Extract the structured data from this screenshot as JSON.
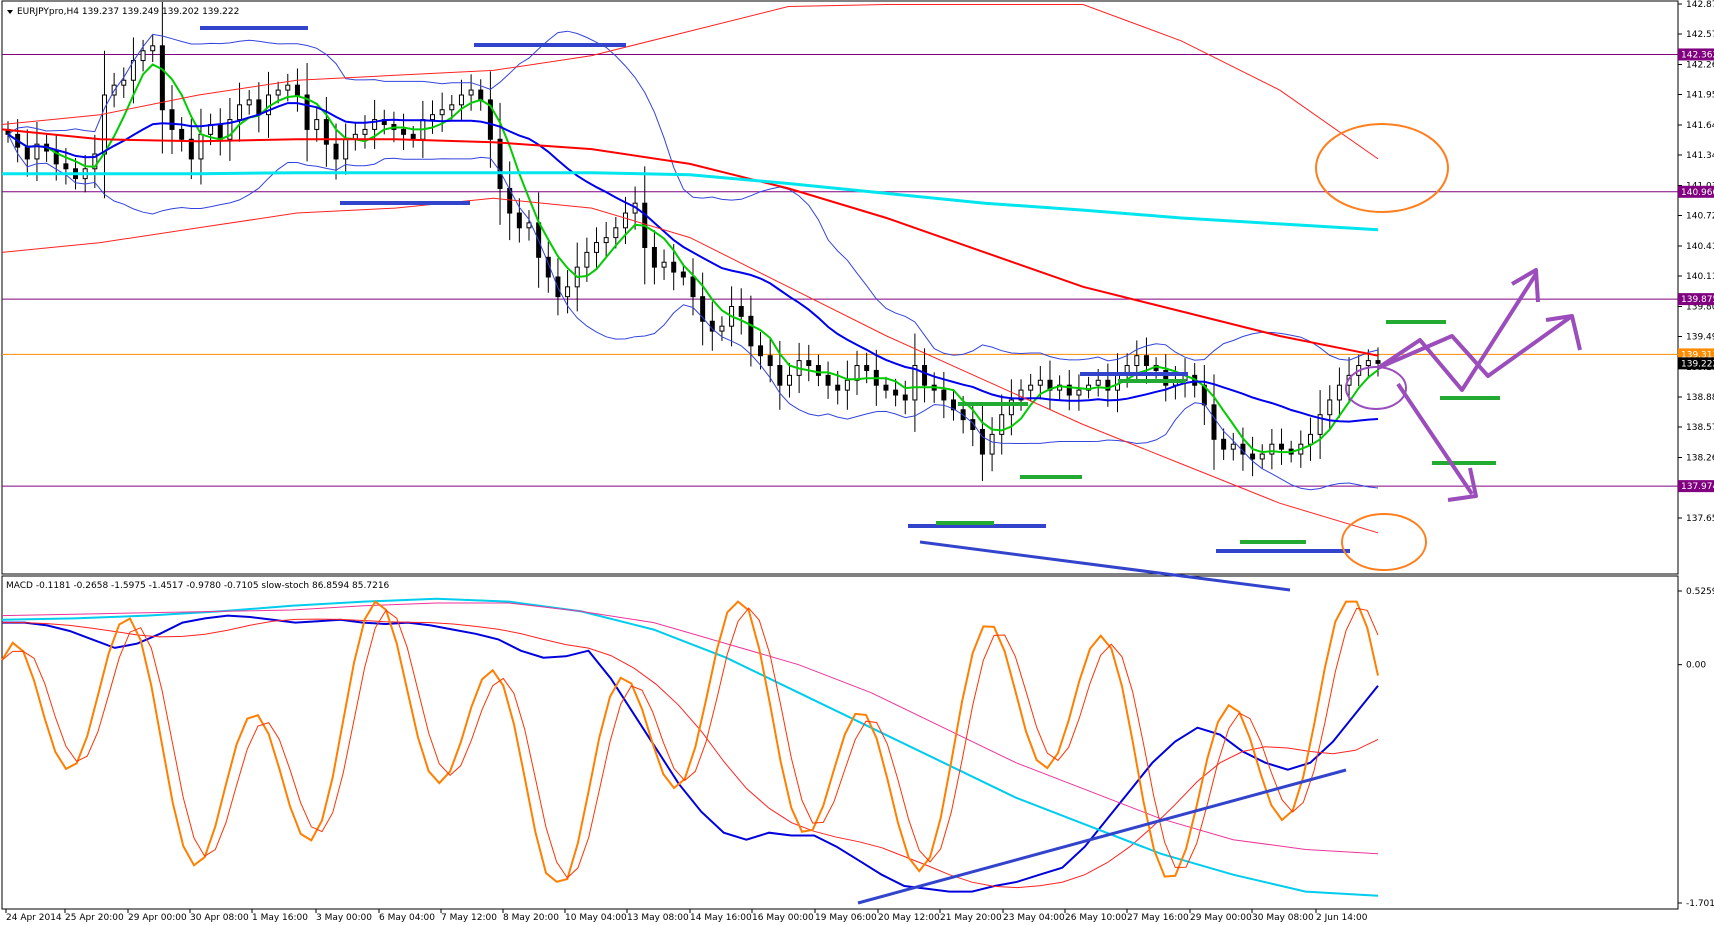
{
  "chart_data": [
    {
      "type": "candlestick",
      "title": "EURJPYpro,H4  139.237 139.249 139.202 139.222",
      "ylim": [
        137.65,
        142.875
      ],
      "y_ticks": [
        "142.875",
        "142.570",
        "142.260",
        "141.955",
        "141.645",
        "141.340",
        "141.030",
        "140.725",
        "140.415",
        "140.110",
        "139.800",
        "139.495",
        "139.185",
        "138.880",
        "138.575",
        "138.265",
        "137.960",
        "137.650"
      ],
      "x_ticks": [
        "24 Apr 2014",
        "25 Apr 20:00",
        "29 Apr 00:00",
        "30 Apr 08:00",
        "1 May 16:00",
        "3 May 00:00",
        "6 May 04:00",
        "7 May 12:00",
        "8 May 20:00",
        "10 May 04:00",
        "13 May 08:00",
        "14 May 16:00",
        "16 May 00:00",
        "19 May 06:00",
        "20 May 12:00",
        "21 May 20:00",
        "23 May 04:00",
        "26 May 10:00",
        "27 May 16:00",
        "29 May 00:00",
        "30 May 08:00",
        "2 Jun 14:00"
      ],
      "levels": [
        {
          "value": "142.362",
          "color": "#800080"
        },
        {
          "value": "140.966",
          "color": "#800080"
        },
        {
          "value": "139.875",
          "color": "#800080"
        },
        {
          "value": "139.313",
          "color": "#ff8c00"
        },
        {
          "value": "137.974",
          "color": "#800080"
        }
      ],
      "last_price": "139.222",
      "closes": [
        141.55,
        141.42,
        141.3,
        141.45,
        141.38,
        141.25,
        141.2,
        141.1,
        141.2,
        141.35,
        141.95,
        142.05,
        142.1,
        142.3,
        142.4,
        142.45,
        141.8,
        141.6,
        141.5,
        141.3,
        141.55,
        141.65,
        141.5,
        141.7,
        141.85,
        141.9,
        141.75,
        141.95,
        142.0,
        142.05,
        141.95,
        141.6,
        141.7,
        141.45,
        141.3,
        141.5,
        141.55,
        141.6,
        141.7,
        141.65,
        141.6,
        141.55,
        141.5,
        141.7,
        141.75,
        141.8,
        141.85,
        141.95,
        142.0,
        141.9,
        141.5,
        141.0,
        140.75,
        140.6,
        140.65,
        140.3,
        140.1,
        139.9,
        140.0,
        140.2,
        140.35,
        140.45,
        140.5,
        140.6,
        140.75,
        140.85,
        140.4,
        140.2,
        140.25,
        140.15,
        140.1,
        139.9,
        139.65,
        139.55,
        139.6,
        139.8,
        139.7,
        139.4,
        139.3,
        139.2,
        139.0,
        139.1,
        139.25,
        139.2,
        139.1,
        139.0,
        138.95,
        139.05,
        139.2,
        139.15,
        139.0,
        138.95,
        138.9,
        138.85,
        139.2,
        139.0,
        138.95,
        138.85,
        138.75,
        138.65,
        138.55,
        138.3,
        138.5,
        138.7,
        138.85,
        138.95,
        139.0,
        139.05,
        138.95,
        139.0,
        138.9,
        138.95,
        139.0,
        139.05,
        138.95,
        139.1,
        139.2,
        139.3,
        139.2,
        139.15,
        139.0,
        139.05,
        139.1,
        139.0,
        138.8,
        138.45,
        138.35,
        138.4,
        138.3,
        138.25,
        138.3,
        138.4,
        138.35,
        138.3,
        138.4,
        138.5,
        138.7,
        138.85,
        139.0,
        139.1,
        139.2,
        139.25,
        139.222
      ],
      "ma_fast_color": "#00cc00",
      "ma_mid_color": "#0000ee",
      "ma_slow_color": "#ff0000",
      "ma_long_color": "#00e5ee"
    },
    {
      "type": "line",
      "title": "MACD -0.1181 -0.2658 -1.5975 -1.4517 -0.9780 -0.7105  slow-stoch 86.8594 85.7216",
      "ylim": [
        -1.7017,
        0.5259
      ],
      "y_ticks": [
        "0.5259",
        "0.00",
        "-1.7017"
      ],
      "macd_main": [
        0.3,
        0.3,
        0.28,
        0.24,
        0.18,
        0.12,
        0.15,
        0.22,
        0.3,
        0.33,
        0.35,
        0.34,
        0.32,
        0.3,
        0.31,
        0.32,
        0.3,
        0.29,
        0.3,
        0.28,
        0.25,
        0.22,
        0.18,
        0.1,
        0.05,
        0.06,
        0.1,
        -0.1,
        -0.35,
        -0.6,
        -0.85,
        -1.05,
        -1.2,
        -1.25,
        -1.2,
        -1.22,
        -1.22,
        -1.3,
        -1.4,
        -1.5,
        -1.58,
        -1.6,
        -1.62,
        -1.62,
        -1.58,
        -1.55,
        -1.5,
        -1.45,
        -1.3,
        -1.1,
        -0.9,
        -0.7,
        -0.55,
        -0.45,
        -0.5,
        -0.62,
        -0.7,
        -0.75,
        -0.7,
        -0.55,
        -0.35,
        -0.15
      ]
    }
  ]
}
